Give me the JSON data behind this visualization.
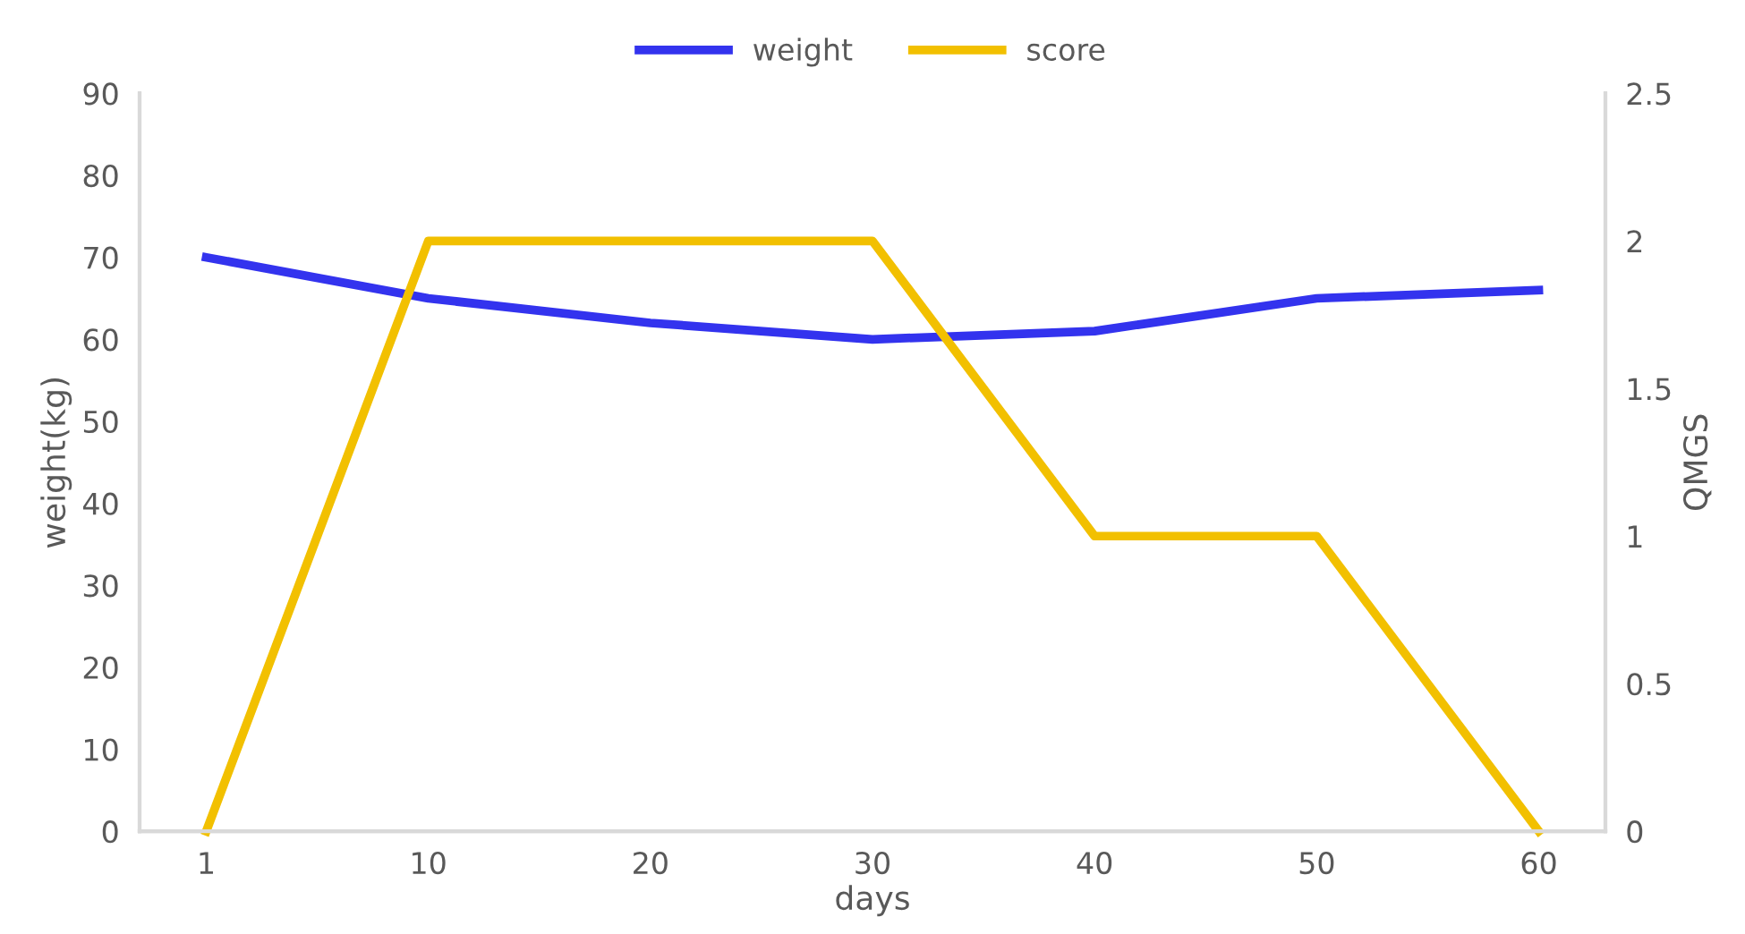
{
  "chart_data": {
    "type": "line",
    "xlabel": "days",
    "ylabel": "weight(kg)",
    "y2label": "QMGS",
    "categories": [
      "1",
      "10",
      "20",
      "30",
      "40",
      "50",
      "60"
    ],
    "series": [
      {
        "name": "weight",
        "color": "#3333ee",
        "values": [
          70,
          65,
          62,
          60,
          61,
          65,
          66
        ]
      },
      {
        "name": "score",
        "color": "#f2c000",
        "axis": "y2",
        "values": [
          0,
          2,
          2,
          2,
          1,
          1,
          0
        ]
      }
    ],
    "ylim": [
      0,
      90
    ],
    "yticks": [
      0,
      10,
      20,
      30,
      40,
      50,
      60,
      70,
      80,
      90
    ],
    "y2lim": [
      0,
      2.5
    ],
    "y2ticks": [
      0,
      {
        "value": 0.5,
        "label": "0.5"
      },
      1,
      {
        "value": 1.5,
        "label": "1.5"
      },
      2,
      {
        "value": 2.5,
        "label": "2.5"
      }
    ],
    "grid": false,
    "legend": "top",
    "marker": "none",
    "line_style": "solid"
  }
}
